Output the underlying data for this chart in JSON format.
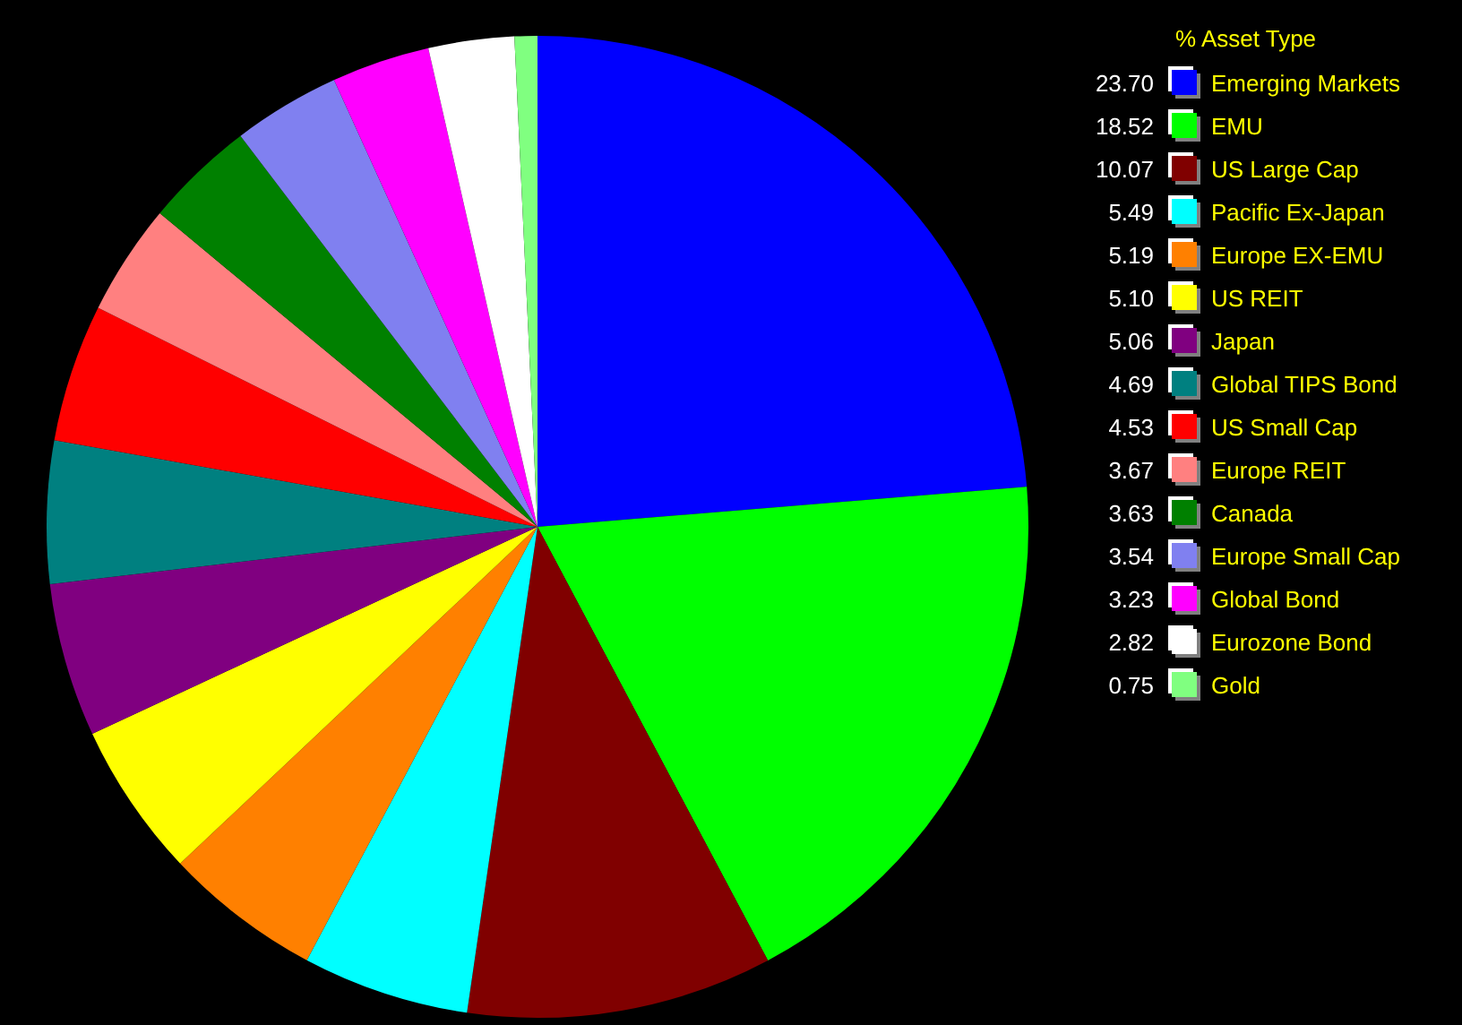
{
  "chart_data": {
    "type": "pie",
    "legend_title": "% Asset Type",
    "legend": "right",
    "value_labels": [
      "23.70",
      "18.52",
      "10.07",
      "5.49",
      "5.19",
      "5.10",
      "5.06",
      "4.69",
      "4.53",
      "3.67",
      "3.63",
      "3.54",
      "3.23",
      "2.82",
      "0.75"
    ],
    "categories": [
      "Emerging Markets",
      "EMU",
      "US Large Cap",
      "Pacific Ex-Japan",
      "Europe EX-EMU",
      "US REIT",
      "Japan",
      "Global TIPS Bond",
      "US Small Cap",
      "Europe REIT",
      "Canada",
      "Europe Small Cap",
      "Global Bond",
      "Eurozone Bond",
      "Gold"
    ],
    "values": [
      23.7,
      18.52,
      10.07,
      5.49,
      5.19,
      5.1,
      5.06,
      4.69,
      4.53,
      3.67,
      3.63,
      3.54,
      3.23,
      2.82,
      0.75
    ],
    "colors": [
      "#0000ff",
      "#00ff00",
      "#800000",
      "#00ffff",
      "#ff8000",
      "#ffff00",
      "#800080",
      "#008080",
      "#ff0000",
      "#ff8080",
      "#008000",
      "#8080f0",
      "#ff00ff",
      "#ffffff",
      "#80ff80"
    ]
  }
}
